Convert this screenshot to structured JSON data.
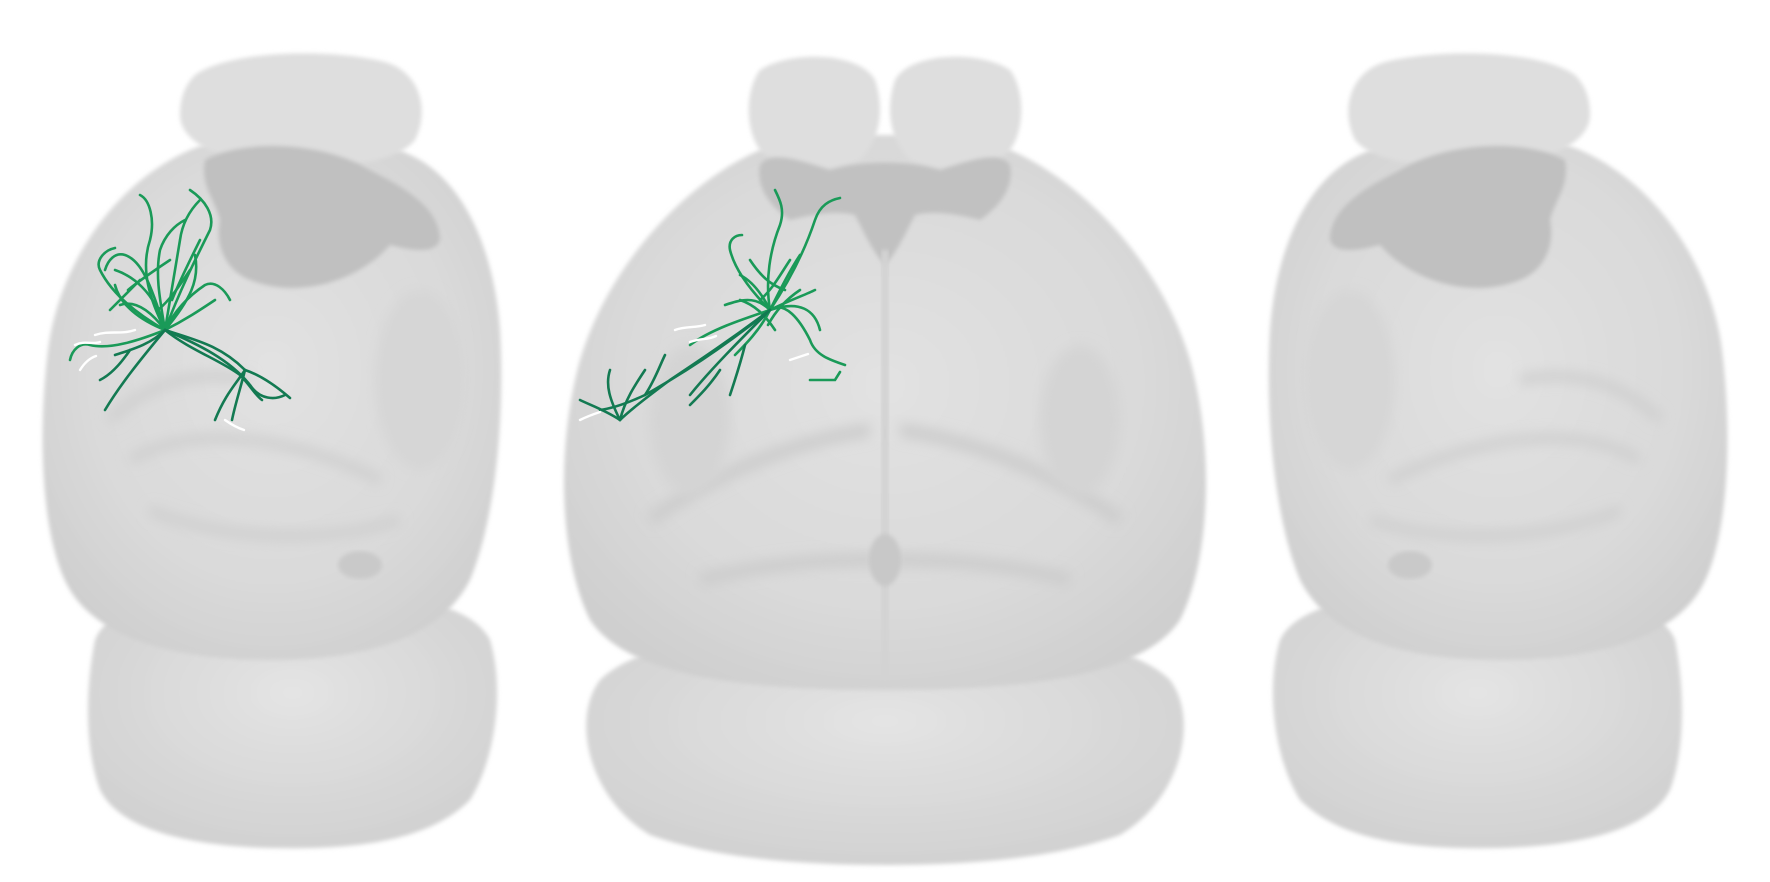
{
  "figure": {
    "views": [
      {
        "id": "left-lateral",
        "neuron_clusters": 2
      },
      {
        "id": "dorsal",
        "neuron_clusters": 2
      },
      {
        "id": "right-lateral",
        "neuron_clusters": 0
      }
    ],
    "colors": {
      "background": "#ffffff",
      "brain_light": "#e6e6e6",
      "brain_mid": "#d2d2d2",
      "brain_dark": "#bdbdbd",
      "neuron_primary": "#1a9a58",
      "neuron_secondary": "#137a52",
      "neuron_highlight": "#ffffff"
    }
  }
}
